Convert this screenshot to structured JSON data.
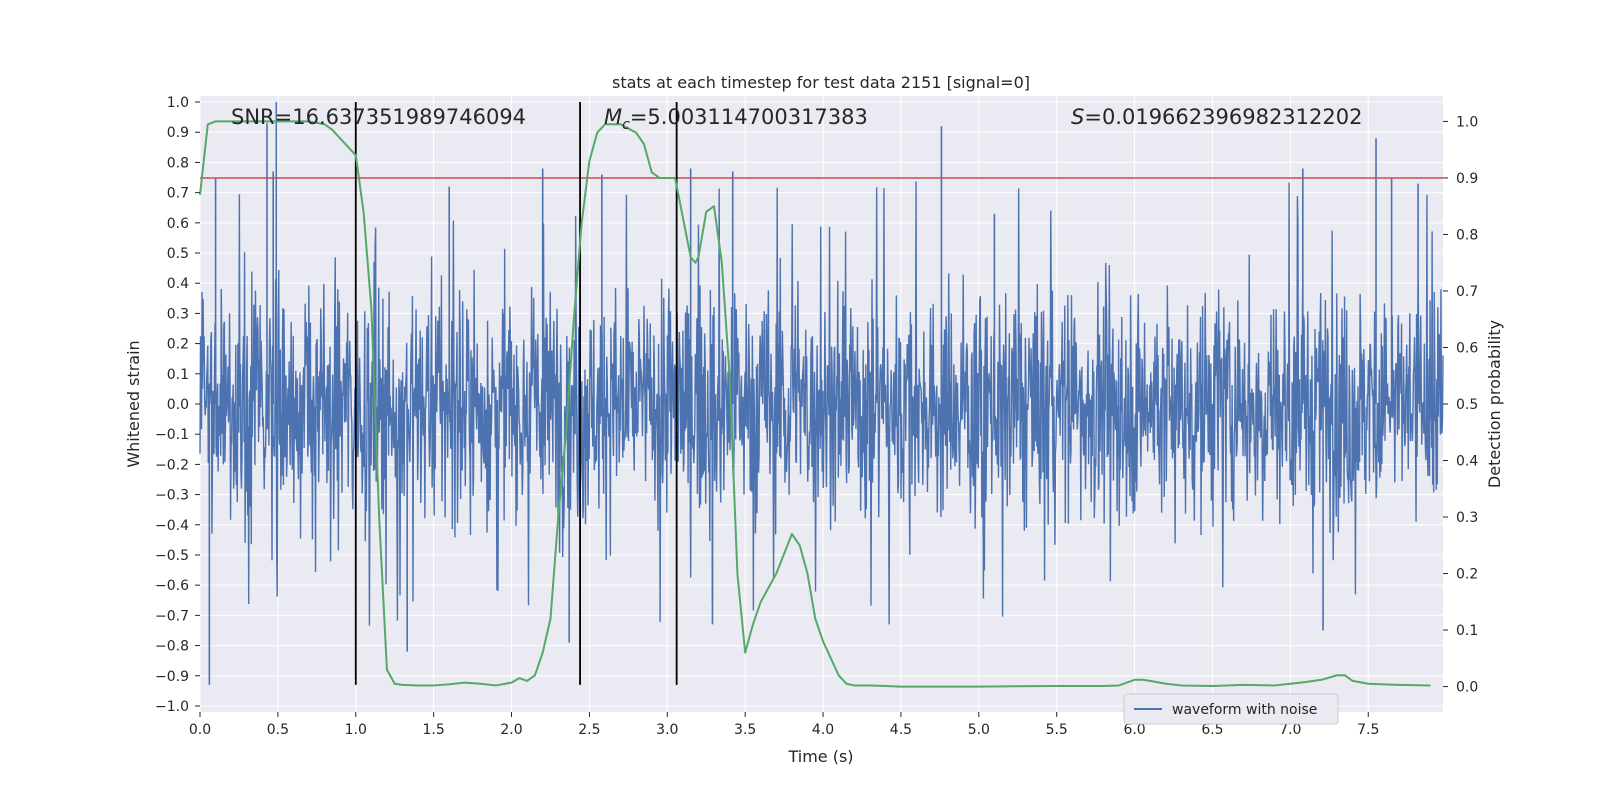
{
  "chart_data": {
    "type": "line",
    "title": "stats at each timestep for test data 2151 [signal=0]",
    "xlabel": "Time (s)",
    "ylabel": "Whitened strain",
    "y2label": "Detection probability",
    "xlim": [
      0.0,
      7.98
    ],
    "ylim": [
      -1.02,
      1.02
    ],
    "y2lim": [
      -0.045,
      1.045
    ],
    "grid": true,
    "xticks": [
      0.0,
      0.5,
      1.0,
      1.5,
      2.0,
      2.5,
      3.0,
      3.5,
      4.0,
      4.5,
      5.0,
      5.5,
      6.0,
      6.5,
      7.0,
      7.5
    ],
    "xtick_labels": [
      "0.0",
      "0.5",
      "1.0",
      "1.5",
      "2.0",
      "2.5",
      "3.0",
      "3.5",
      "4.0",
      "4.5",
      "5.0",
      "5.5",
      "6.0",
      "6.5",
      "7.0",
      "7.5"
    ],
    "yticks": [
      -1.0,
      -0.9,
      -0.8,
      -0.7,
      -0.6,
      -0.5,
      -0.4,
      -0.3,
      -0.2,
      -0.1,
      0.0,
      0.1,
      0.2,
      0.3,
      0.4,
      0.5,
      0.6,
      0.7,
      0.8,
      0.9,
      1.0
    ],
    "ytick_labels": [
      "−1.0",
      "−0.9",
      "−0.8",
      "−0.7",
      "−0.6",
      "−0.5",
      "−0.4",
      "−0.3",
      "−0.2",
      "−0.1",
      "0.0",
      "0.1",
      "0.2",
      "0.3",
      "0.4",
      "0.5",
      "0.6",
      "0.7",
      "0.8",
      "0.9",
      "1.0"
    ],
    "y2ticks": [
      0.0,
      0.1,
      0.2,
      0.3,
      0.4,
      0.5,
      0.6,
      0.7,
      0.8,
      0.9,
      1.0
    ],
    "y2tick_labels": [
      "0.0",
      "0.1",
      "0.2",
      "0.3",
      "0.4",
      "0.5",
      "0.6",
      "0.7",
      "0.8",
      "0.9",
      "1.0"
    ],
    "annotations": {
      "snr": "SNR=16.637351989746094",
      "mc_symbol": "M",
      "mc_sub": "c",
      "mc_value": "=5.003114700317383",
      "s_symbol": "S",
      "s_value": "=0.019662396982312202"
    },
    "legend": {
      "placement": "lower-right",
      "entries": [
        "waveform with noise"
      ]
    },
    "colors": {
      "waveform": "#4c72b0",
      "probability": "#55a868",
      "threshold": "#c44e52",
      "vlines": "#000000",
      "plot_bg": "#eaeaf2",
      "grid": "#ffffff"
    },
    "vlines": {
      "x": [
        1.0,
        2.44,
        3.06
      ],
      "ymin": -0.93,
      "ymax": 1.0
    },
    "threshold_probability": 0.9,
    "waveform": {
      "t_start": 0.0,
      "t_end": 7.98,
      "typical_amplitude": 0.2,
      "peak_times": [
        0.06,
        0.1,
        0.43,
        0.47,
        0.49,
        1.33,
        1.6,
        2.2,
        2.37,
        2.58,
        3.15,
        3.29,
        3.42,
        4.76,
        5.1,
        7.08,
        7.21,
        7.55,
        7.65,
        7.82
      ],
      "peak_values": [
        -0.93,
        0.75,
        0.93,
        0.77,
        1.0,
        -0.82,
        0.72,
        0.78,
        -0.79,
        0.76,
        0.78,
        -0.73,
        0.77,
        0.92,
        0.63,
        0.78,
        -0.75,
        0.88,
        0.75,
        0.73
      ]
    },
    "probability": {
      "x": [
        0.0,
        0.05,
        0.1,
        0.2,
        0.3,
        0.4,
        0.5,
        0.6,
        0.7,
        0.8,
        0.85,
        0.9,
        0.95,
        1.0,
        1.05,
        1.1,
        1.15,
        1.2,
        1.25,
        1.3,
        1.4,
        1.5,
        1.6,
        1.7,
        1.8,
        1.9,
        2.0,
        2.05,
        2.1,
        2.15,
        2.2,
        2.25,
        2.3,
        2.35,
        2.4,
        2.45,
        2.5,
        2.55,
        2.6,
        2.7,
        2.8,
        2.85,
        2.9,
        2.95,
        3.0,
        3.05,
        3.1,
        3.15,
        3.18,
        3.2,
        3.25,
        3.3,
        3.35,
        3.4,
        3.45,
        3.5,
        3.55,
        3.6,
        3.7,
        3.8,
        3.85,
        3.9,
        3.95,
        4.0,
        4.05,
        4.1,
        4.15,
        4.2,
        4.3,
        4.5,
        5.0,
        5.5,
        5.8,
        5.9,
        6.0,
        6.05,
        6.1,
        6.2,
        6.3,
        6.5,
        6.7,
        6.9,
        7.0,
        7.1,
        7.2,
        7.3,
        7.35,
        7.4,
        7.5,
        7.7,
        7.9
      ],
      "y": [
        0.87,
        0.995,
        1.0,
        1.0,
        1.0,
        1.0,
        1.0,
        1.0,
        1.0,
        0.995,
        0.985,
        0.97,
        0.955,
        0.94,
        0.84,
        0.67,
        0.3,
        0.03,
        0.005,
        0.003,
        0.002,
        0.002,
        0.004,
        0.007,
        0.005,
        0.002,
        0.007,
        0.015,
        0.01,
        0.02,
        0.06,
        0.12,
        0.3,
        0.45,
        0.65,
        0.82,
        0.93,
        0.98,
        0.995,
        0.995,
        0.98,
        0.96,
        0.91,
        0.9,
        0.9,
        0.9,
        0.83,
        0.76,
        0.75,
        0.76,
        0.84,
        0.85,
        0.75,
        0.55,
        0.2,
        0.06,
        0.11,
        0.15,
        0.2,
        0.27,
        0.25,
        0.2,
        0.12,
        0.08,
        0.05,
        0.02,
        0.005,
        0.002,
        0.002,
        0.0,
        0.0,
        0.001,
        0.001,
        0.002,
        0.012,
        0.012,
        0.01,
        0.005,
        0.002,
        0.001,
        0.003,
        0.002,
        0.005,
        0.008,
        0.012,
        0.02,
        0.02,
        0.01,
        0.005,
        0.003,
        0.002
      ]
    }
  }
}
